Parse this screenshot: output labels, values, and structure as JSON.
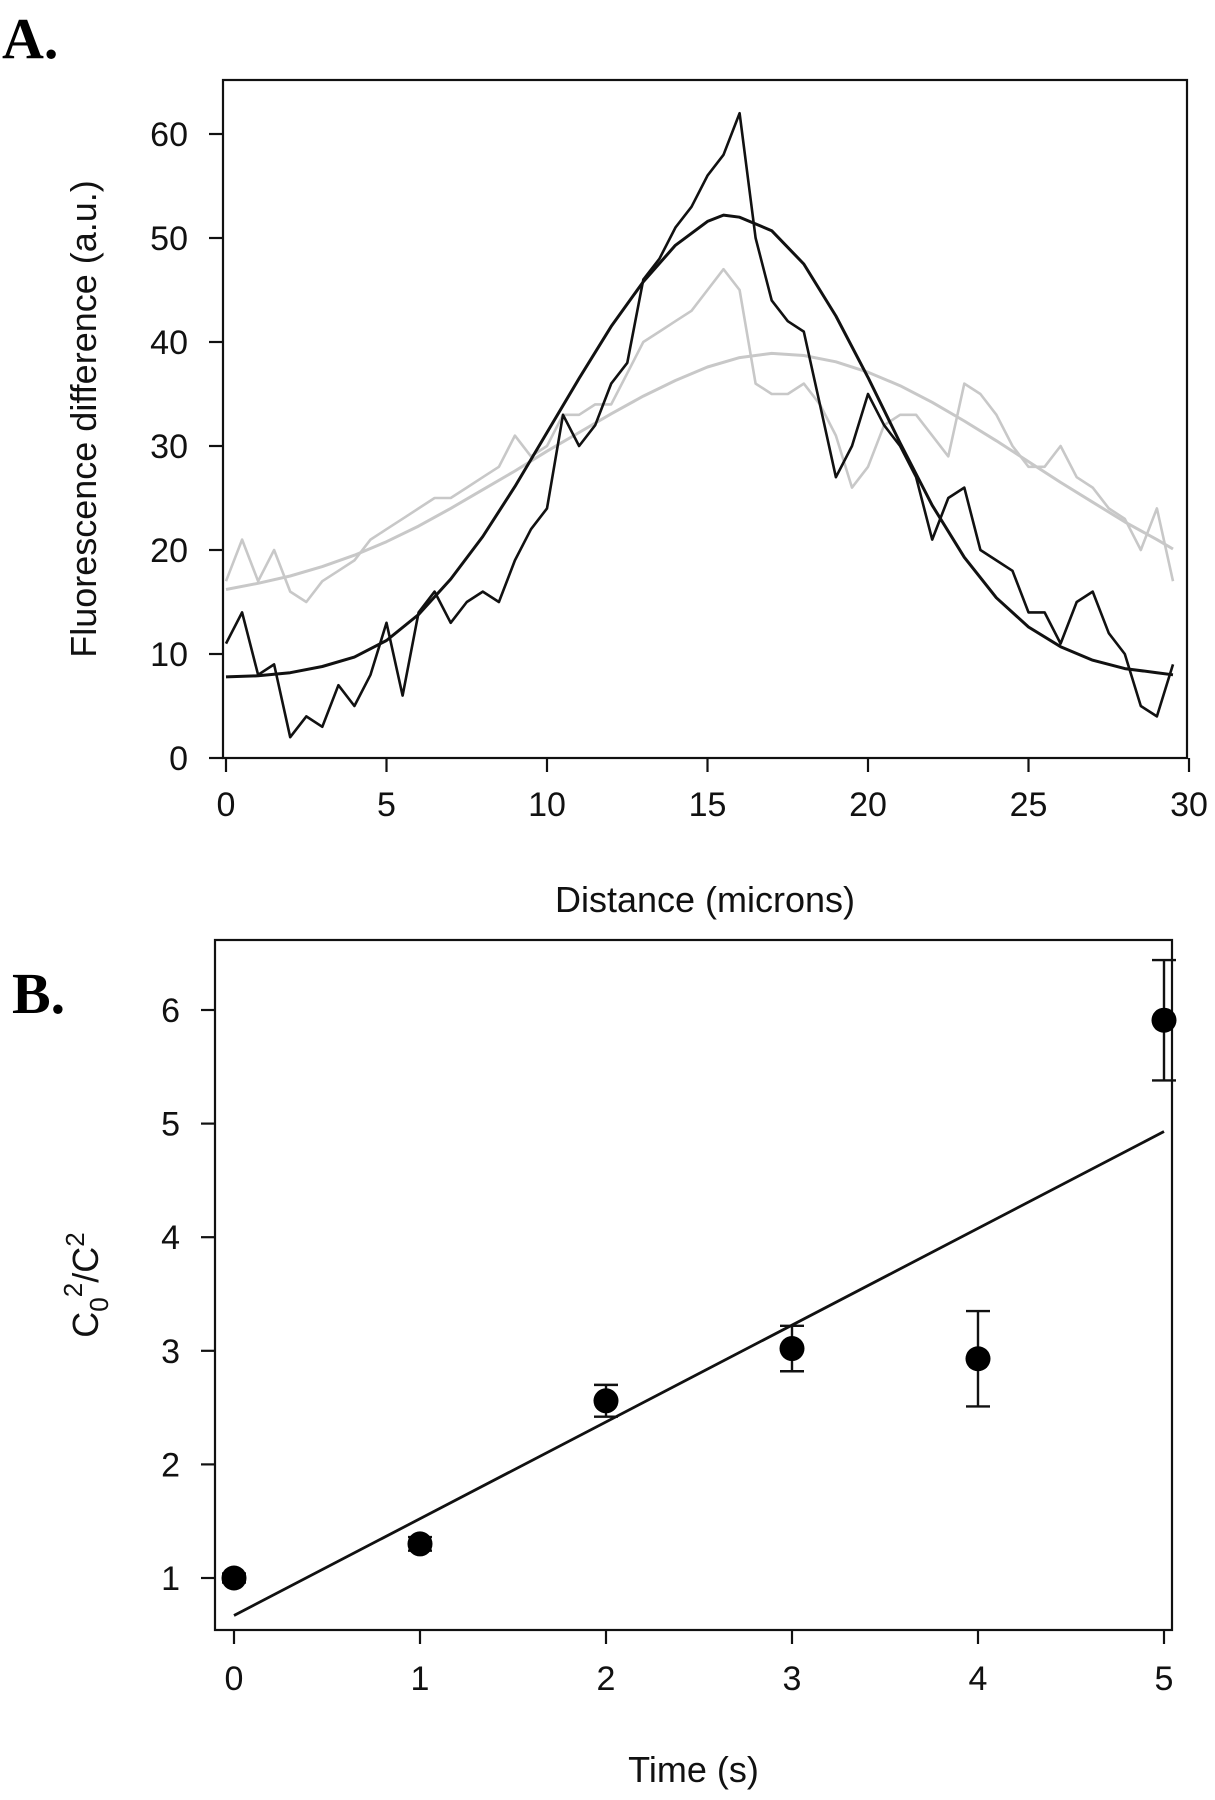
{
  "figure": {
    "panel_a_label": "A.",
    "panel_b_label": "B."
  },
  "chart_data": [
    {
      "type": "line",
      "panel": "A.",
      "xlabel": "Distance (microns)",
      "ylabel": "Fluorescence difference (a.u.)",
      "xlim": [
        0,
        30
      ],
      "ylim": [
        0,
        60
      ],
      "xticks": [
        0,
        5,
        10,
        15,
        20,
        25,
        30
      ],
      "yticks": [
        0,
        10,
        20,
        30,
        40,
        50,
        60
      ],
      "grid": false,
      "series": [
        {
          "style": "data",
          "color": "#c8c8c8",
          "x": [
            0,
            0.5,
            1,
            1.5,
            2,
            2.5,
            3,
            3.5,
            4,
            4.5,
            5,
            5.5,
            6,
            6.5,
            7,
            7.5,
            8,
            8.5,
            9,
            9.5,
            10,
            10.5,
            11,
            11.5,
            12,
            12.5,
            13,
            13.5,
            14,
            14.5,
            15,
            15.5,
            16,
            16.5,
            17,
            17.5,
            18,
            18.5,
            19,
            19.5,
            20,
            20.5,
            21,
            21.5,
            22,
            22.5,
            23,
            23.5,
            24,
            24.5,
            25,
            25.5,
            26,
            26.5,
            27,
            27.5,
            28,
            28.5,
            29,
            29.5
          ],
          "y": [
            17,
            21,
            17,
            20,
            16,
            15,
            17,
            18,
            19,
            21,
            22,
            23,
            24,
            25,
            25,
            26,
            27,
            28,
            31,
            29,
            30,
            33,
            33,
            34,
            34,
            37,
            40,
            41,
            42,
            43,
            45,
            47,
            45,
            36,
            35,
            35,
            36,
            34,
            31,
            26,
            28,
            32,
            33,
            33,
            31,
            29,
            36,
            35,
            33,
            30,
            28,
            28,
            30,
            27,
            26,
            24,
            23,
            20,
            24,
            17
          ]
        },
        {
          "style": "fit",
          "color": "#c8c8c8",
          "x": [
            0,
            1,
            2,
            3,
            4,
            5,
            6,
            7,
            8,
            9,
            10,
            11,
            12,
            13,
            14,
            15,
            16,
            17,
            18,
            19,
            20,
            21,
            22,
            23,
            24,
            25,
            26,
            27,
            28,
            29,
            29.5
          ],
          "y": [
            16.2,
            16.8,
            17.5,
            18.4,
            19.5,
            20.8,
            22.3,
            24.0,
            25.8,
            27.6,
            29.5,
            31.3,
            33.1,
            34.8,
            36.3,
            37.6,
            38.5,
            38.9,
            38.7,
            38.1,
            37.1,
            35.8,
            34.2,
            32.4,
            30.5,
            28.5,
            26.5,
            24.6,
            22.7,
            21.0,
            20.1
          ]
        },
        {
          "style": "data",
          "color": "#111111",
          "x": [
            0,
            0.5,
            1,
            1.5,
            2,
            2.5,
            3,
            3.5,
            4,
            4.5,
            5,
            5.5,
            6,
            6.5,
            7,
            7.5,
            8,
            8.5,
            9,
            9.5,
            10,
            10.5,
            11,
            11.5,
            12,
            12.5,
            13,
            13.5,
            14,
            14.5,
            15,
            15.5,
            16,
            16.5,
            17,
            17.5,
            18,
            18.5,
            19,
            19.5,
            20,
            20.5,
            21,
            21.5,
            22,
            22.5,
            23,
            23.5,
            24,
            24.5,
            25,
            25.5,
            26,
            26.5,
            27,
            27.5,
            28,
            28.5,
            29,
            29.5
          ],
          "y": [
            11,
            14,
            8,
            9,
            2,
            4,
            3,
            7,
            5,
            8,
            13,
            6,
            14,
            16,
            13,
            15,
            16,
            15,
            19,
            22,
            24,
            33,
            30,
            32,
            36,
            38,
            46,
            48,
            51,
            53,
            56,
            58,
            62,
            50,
            44,
            42,
            41,
            34,
            27,
            30,
            35,
            32,
            30,
            27,
            21,
            25,
            26,
            20,
            19,
            18,
            14,
            14,
            11,
            15,
            16,
            12,
            10,
            5,
            4,
            9
          ]
        },
        {
          "style": "fit",
          "color": "#111111",
          "x": [
            0,
            1,
            2,
            3,
            4,
            5,
            6,
            7,
            8,
            9,
            10,
            11,
            12,
            13,
            14,
            15,
            15.5,
            16,
            17,
            18,
            19,
            20,
            21,
            22,
            23,
            24,
            25,
            26,
            27,
            28,
            29,
            29.5
          ],
          "y": [
            7.8,
            7.9,
            8.2,
            8.8,
            9.7,
            11.3,
            13.8,
            17.2,
            21.3,
            26.1,
            31.3,
            36.5,
            41.5,
            45.8,
            49.3,
            51.6,
            52.2,
            52.0,
            50.7,
            47.5,
            42.5,
            36.6,
            30.3,
            24.3,
            19.3,
            15.4,
            12.6,
            10.7,
            9.4,
            8.6,
            8.2,
            8.0
          ]
        }
      ]
    },
    {
      "type": "scatter",
      "panel": "B.",
      "xlabel": "Time (s)",
      "ylabel_main": "C",
      "ylabel_sub": "0",
      "ylabel_sup1": "2",
      "ylabel_mid": "/C",
      "ylabel_sup2": "2",
      "xlim": [
        0,
        5
      ],
      "ylim": [
        1,
        6
      ],
      "xticks": [
        0,
        1,
        2,
        3,
        4,
        5
      ],
      "yticks": [
        1,
        2,
        3,
        4,
        5,
        6
      ],
      "grid": false,
      "points": [
        {
          "x": 0,
          "y": 1.0,
          "err": 0.04
        },
        {
          "x": 1,
          "y": 1.3,
          "err": 0.06
        },
        {
          "x": 2,
          "y": 2.56,
          "err": 0.14
        },
        {
          "x": 3,
          "y": 3.02,
          "err": 0.2
        },
        {
          "x": 4,
          "y": 2.93,
          "err": 0.42
        },
        {
          "x": 5,
          "y": 5.91,
          "err": 0.53
        }
      ],
      "fit_line": {
        "x": [
          0,
          5
        ],
        "y": [
          0.67,
          4.93
        ]
      }
    }
  ]
}
